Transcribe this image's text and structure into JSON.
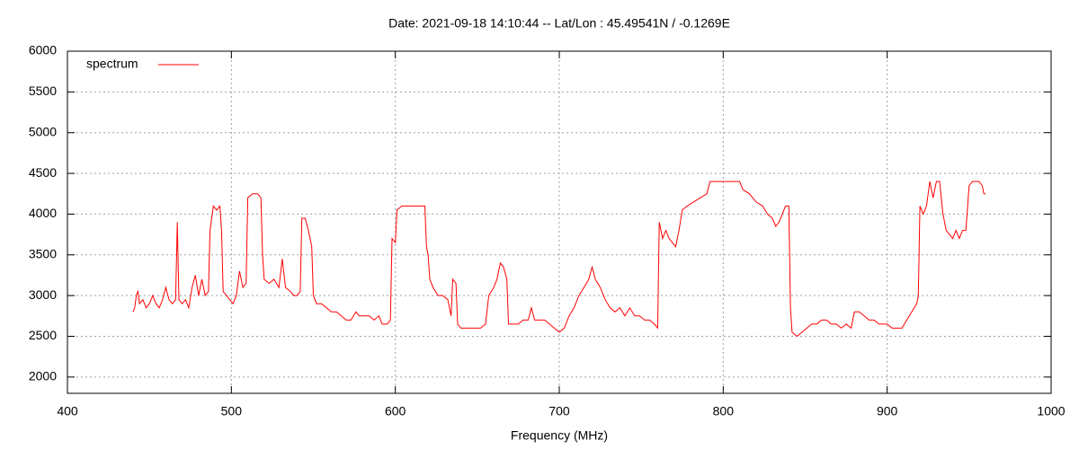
{
  "chart_data": {
    "type": "line",
    "title": "Date: 2021-09-18 14:10:44  --  Lat/Lon : 45.49541N / -0.1269E",
    "x_label": "Frequency (MHz)",
    "legend": "top-left",
    "grid": true,
    "xlim": [
      400,
      1000
    ],
    "xticks": [
      400,
      500,
      600,
      700,
      800,
      900,
      1000
    ],
    "ylim": [
      1800,
      6000
    ],
    "yticks": [
      2000,
      2500,
      3000,
      3500,
      4000,
      4500,
      5000,
      5500,
      6000
    ],
    "x": [
      440,
      441,
      442,
      443,
      444,
      446,
      448,
      450,
      452,
      454,
      456,
      458,
      460,
      462,
      464,
      466,
      467,
      468,
      470,
      472,
      474,
      476,
      478,
      480,
      482,
      484,
      486,
      487,
      489,
      491,
      493,
      494,
      495,
      497,
      499,
      501,
      503,
      505,
      507,
      509,
      510,
      513,
      516,
      518,
      519,
      520,
      523,
      526,
      529,
      531,
      533,
      536,
      538,
      540,
      542,
      543,
      545,
      547,
      549,
      550,
      552,
      555,
      558,
      561,
      564,
      567,
      570,
      573,
      576,
      578,
      581,
      584,
      587,
      590,
      592,
      595,
      597,
      598,
      600,
      601,
      604,
      608,
      612,
      616,
      618,
      619,
      620,
      621,
      623,
      626,
      629,
      632,
      634,
      635,
      637,
      638,
      640,
      643,
      646,
      649,
      652,
      655,
      657,
      660,
      662,
      664,
      666,
      668,
      669,
      672,
      675,
      678,
      681,
      683,
      685,
      688,
      691,
      694,
      697,
      700,
      703,
      706,
      709,
      712,
      715,
      718,
      720,
      722,
      725,
      728,
      731,
      734,
      737,
      740,
      743,
      746,
      749,
      752,
      755,
      758,
      760,
      761,
      763,
      765,
      767,
      769,
      771,
      773,
      775,
      778,
      782,
      786,
      790,
      792,
      796,
      800,
      805,
      810,
      812,
      816,
      820,
      824,
      827,
      830,
      832,
      834,
      836,
      838,
      840,
      841,
      842,
      845,
      848,
      851,
      854,
      857,
      860,
      863,
      866,
      869,
      872,
      875,
      878,
      880,
      883,
      886,
      889,
      892,
      895,
      898,
      900,
      903,
      906,
      909,
      912,
      915,
      918,
      919,
      920,
      922,
      924,
      926,
      928,
      930,
      932,
      934,
      936,
      938,
      940,
      942,
      944,
      946,
      948,
      950,
      952,
      954,
      956,
      958,
      959,
      960
    ],
    "series": [
      {
        "name": "spectrum",
        "color": "#ff0000",
        "values": [
          2800,
          2850,
          3000,
          3050,
          2900,
          2950,
          2850,
          2900,
          3000,
          2900,
          2850,
          2950,
          3100,
          2950,
          2900,
          2950,
          3900,
          2950,
          2900,
          2950,
          2850,
          3100,
          3250,
          3000,
          3200,
          3000,
          3050,
          3800,
          4100,
          4050,
          4100,
          3800,
          3050,
          3000,
          2950,
          2900,
          3000,
          3300,
          3100,
          3150,
          4200,
          4250,
          4250,
          4200,
          3500,
          3200,
          3150,
          3200,
          3100,
          3450,
          3100,
          3050,
          3000,
          3000,
          3050,
          3950,
          3950,
          3800,
          3600,
          3000,
          2900,
          2900,
          2850,
          2800,
          2800,
          2750,
          2700,
          2700,
          2800,
          2750,
          2750,
          2750,
          2700,
          2750,
          2650,
          2650,
          2700,
          3700,
          3650,
          4050,
          4100,
          4100,
          4100,
          4100,
          4100,
          3600,
          3500,
          3200,
          3100,
          3000,
          3000,
          2950,
          2750,
          3200,
          3150,
          2650,
          2600,
          2600,
          2600,
          2600,
          2600,
          2650,
          3000,
          3100,
          3200,
          3400,
          3350,
          3200,
          2650,
          2650,
          2650,
          2700,
          2700,
          2850,
          2700,
          2700,
          2700,
          2650,
          2600,
          2550,
          2600,
          2750,
          2850,
          3000,
          3100,
          3200,
          3350,
          3200,
          3100,
          2950,
          2850,
          2800,
          2850,
          2750,
          2850,
          2750,
          2750,
          2700,
          2700,
          2650,
          2600,
          3900,
          3700,
          3800,
          3700,
          3650,
          3600,
          3800,
          4050,
          4100,
          4150,
          4200,
          4250,
          4400,
          4400,
          4400,
          4400,
          4400,
          4300,
          4250,
          4150,
          4100,
          4000,
          3950,
          3850,
          3900,
          4000,
          4100,
          4100,
          2850,
          2550,
          2500,
          2550,
          2600,
          2650,
          2650,
          2700,
          2700,
          2650,
          2650,
          2600,
          2650,
          2600,
          2800,
          2800,
          2750,
          2700,
          2700,
          2650,
          2650,
          2650,
          2600,
          2600,
          2600,
          2700,
          2800,
          2900,
          3000,
          4100,
          4000,
          4100,
          4400,
          4200,
          4400,
          4400,
          4000,
          3800,
          3750,
          3700,
          3800,
          3700,
          3800,
          3800,
          4350,
          4400,
          4400,
          4400,
          4350,
          4250,
          4250
        ]
      }
    ]
  }
}
